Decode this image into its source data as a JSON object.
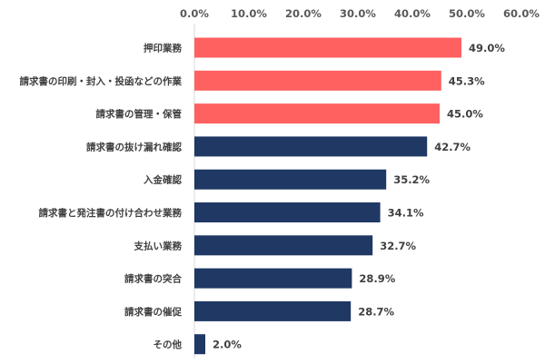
{
  "chart_data": {
    "type": "bar",
    "orientation": "horizontal",
    "categories": [
      "押印業務",
      "請求書の印刷・封入・投函などの作業",
      "請求書の管理・保管",
      "請求書の抜け漏れ確認",
      "入金確認",
      "請求書と発注書の付け合わせ業務",
      "支払い業務",
      "請求書の突合",
      "請求書の催促",
      "その他"
    ],
    "values": [
      49.0,
      45.3,
      45.0,
      42.7,
      35.2,
      34.1,
      32.7,
      28.9,
      28.7,
      2.0
    ],
    "data_labels": [
      "49.0%",
      "45.3%",
      "45.0%",
      "42.7%",
      "35.2%",
      "34.1%",
      "32.7%",
      "28.9%",
      "28.7%",
      "2.0%"
    ],
    "bar_colors": [
      "#FF6161",
      "#FF6161",
      "#FF6161",
      "#1F3864",
      "#1F3864",
      "#1F3864",
      "#1F3864",
      "#1F3864",
      "#1F3864",
      "#1F3864"
    ],
    "xlim": [
      0,
      60
    ],
    "x_ticks": [
      0,
      10,
      20,
      30,
      40,
      50,
      60
    ],
    "x_tick_labels": [
      "0.0%",
      "10.0%",
      "20.0%",
      "30.0%",
      "40.0%",
      "50.0%",
      "60.0%"
    ],
    "axis_position": "top",
    "grid": false,
    "legend": "none"
  }
}
